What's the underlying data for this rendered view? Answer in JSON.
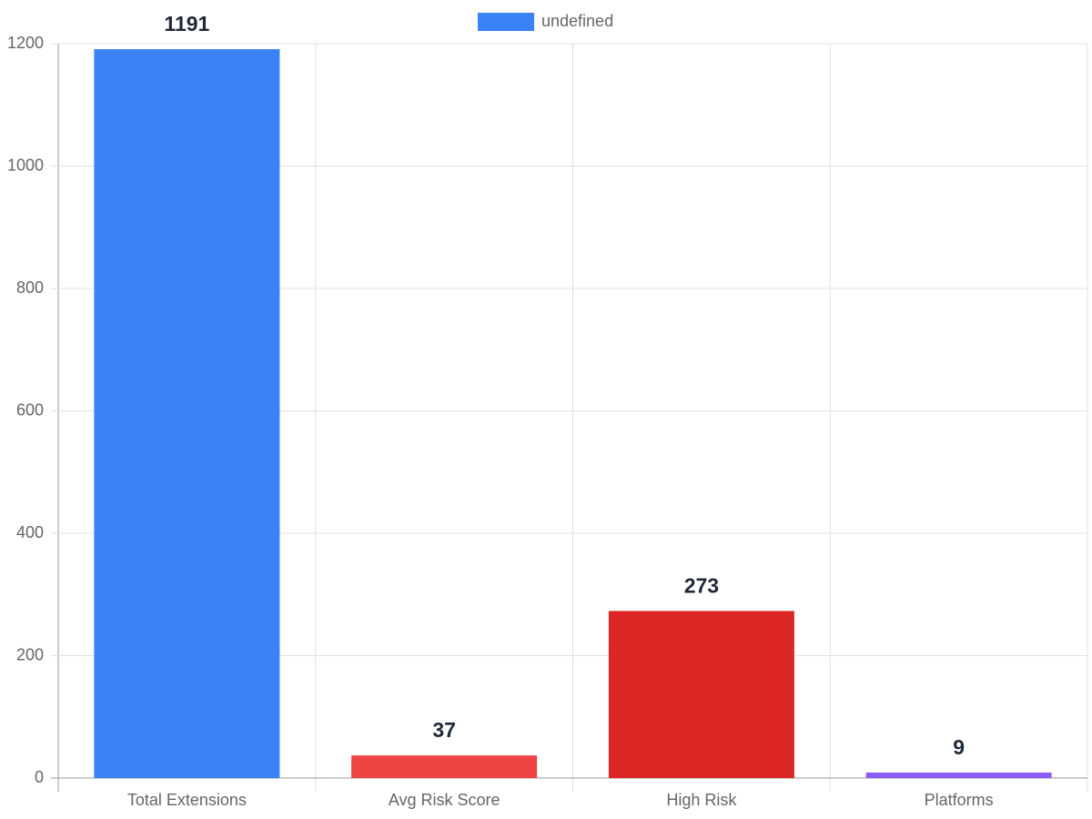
{
  "chart_data": {
    "type": "bar",
    "categories": [
      "Total Extensions",
      "Avg Risk Score",
      "High Risk",
      "Platforms"
    ],
    "series": [
      {
        "name": "undefined",
        "color": "#3b82f6",
        "colors": [
          "#3b82f6",
          "#ef4444",
          "#dc2626",
          "#8b5cf6"
        ],
        "values": [
          1191,
          37,
          273,
          9
        ]
      }
    ],
    "ylim": [
      0,
      1200
    ],
    "yticks": [
      0,
      200,
      400,
      600,
      800,
      1000,
      1200
    ],
    "grid": true,
    "legend": "top"
  }
}
